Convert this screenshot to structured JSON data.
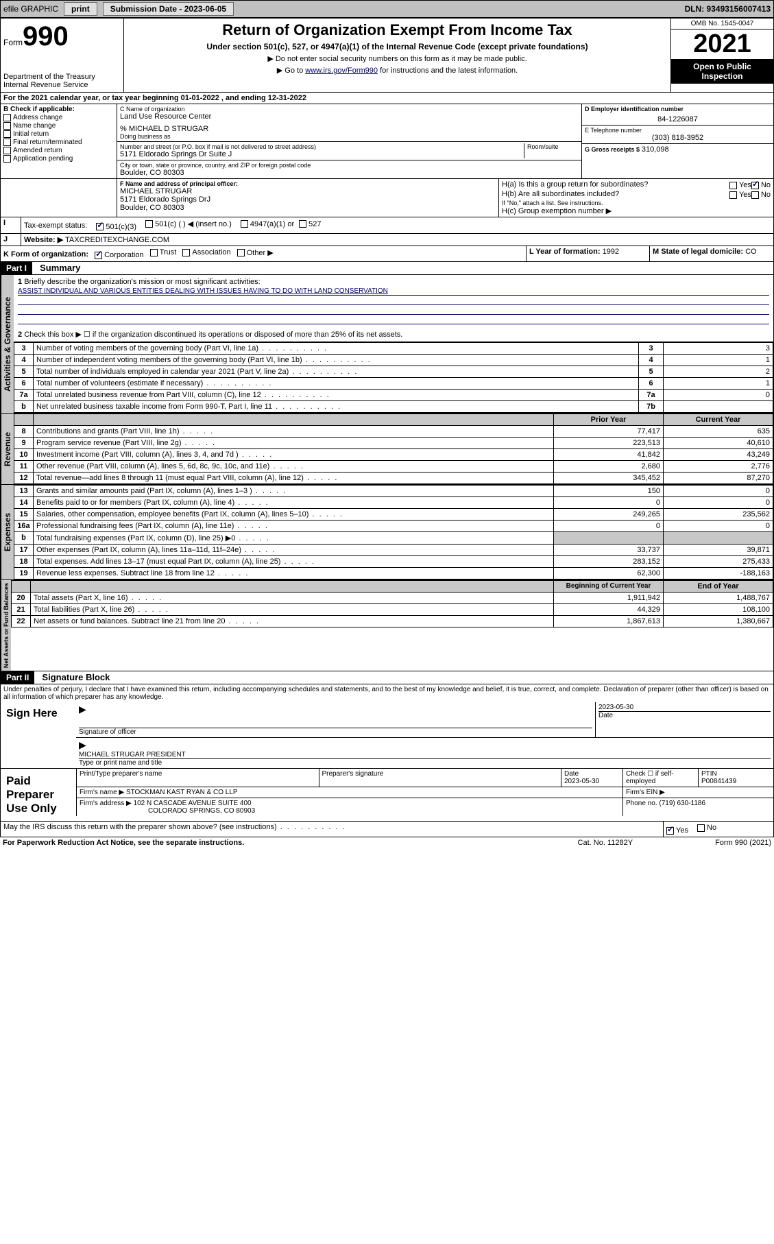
{
  "topbar": {
    "efile": "efile GRAPHIC",
    "print": "print",
    "sub_label": "Submission Date - 2023-06-05",
    "dln": "DLN: 93493156007413"
  },
  "header": {
    "form_word": "Form",
    "form_num": "990",
    "dept": "Department of the Treasury",
    "irs": "Internal Revenue Service",
    "title": "Return of Organization Exempt From Income Tax",
    "sub": "Under section 501(c), 527, or 4947(a)(1) of the Internal Revenue Code (except private foundations)",
    "note1": "▶ Do not enter social security numbers on this form as it may be made public.",
    "note2_pre": "▶ Go to ",
    "note2_link": "www.irs.gov/Form990",
    "note2_post": " for instructions and the latest information.",
    "omb": "OMB No. 1545-0047",
    "year": "2021",
    "open": "Open to Public Inspection"
  },
  "line_a": "For the 2021 calendar year, or tax year beginning 01-01-2022   , and ending 12-31-2022",
  "box_b": {
    "title": "B Check if applicable:",
    "items": [
      "Address change",
      "Name change",
      "Initial return",
      "Final return/terminated",
      "Amended return",
      "Application pending"
    ]
  },
  "box_c": {
    "name_lbl": "C Name of organization",
    "name": "Land Use Resource Center",
    "care_of": "% MICHAEL D STRUGAR",
    "dba_lbl": "Doing business as",
    "street_lbl": "Number and street (or P.O. box if mail is not delivered to street address)",
    "street": "5171 Eldorado Springs Dr Suite J",
    "room_lbl": "Room/suite",
    "city_lbl": "City or town, state or province, country, and ZIP or foreign postal code",
    "city": "Boulder, CO  80303"
  },
  "box_d": {
    "lbl": "D Employer identification number",
    "val": "84-1226087"
  },
  "box_e": {
    "lbl": "E Telephone number",
    "val": "(303) 818-3952"
  },
  "box_g": {
    "lbl": "G Gross receipts $",
    "val": "310,098"
  },
  "box_f": {
    "lbl": "F Name and address of principal officer:",
    "name": "MICHAEL STRUGAR",
    "addr1": "5171 Eldorado Springs DrJ",
    "addr2": "Boulder, CO  80303"
  },
  "box_h": {
    "a": "H(a)  Is this a group return for subordinates?",
    "b": "H(b)  Are all subordinates included?",
    "b_note": "If \"No,\" attach a list. See instructions.",
    "c": "H(c)  Group exemption number ▶",
    "yes": "Yes",
    "no": "No"
  },
  "box_i": {
    "lbl": "Tax-exempt status:",
    "o1": "501(c)(3)",
    "o2": "501(c) (  ) ◀ (insert no.)",
    "o3": "4947(a)(1) or",
    "o4": "527"
  },
  "box_j": {
    "lbl": "Website: ▶",
    "val": "TAXCREDITEXCHANGE.COM"
  },
  "box_k": {
    "lbl": "K Form of organization:",
    "o1": "Corporation",
    "o2": "Trust",
    "o3": "Association",
    "o4": "Other ▶"
  },
  "box_l": {
    "lbl": "L Year of formation:",
    "val": "1992"
  },
  "box_m": {
    "lbl": "M State of legal domicile:",
    "val": "CO"
  },
  "part1": {
    "hdr": "Part I",
    "title": "Summary",
    "l1_lbl": "Briefly describe the organization's mission or most significant activities:",
    "l1_val": "ASSIST INDIVIDUAL AND VARIOUS ENTITIES DEALING WITH ISSUES HAVING TO DO WITH LAND CONSERVATION",
    "l2": "Check this box ▶ ☐  if the organization discontinued its operations or disposed of more than 25% of its net assets.",
    "rows_gov": [
      {
        "n": "3",
        "d": "Number of voting members of the governing body (Part VI, line 1a)",
        "b": "3",
        "v": "3"
      },
      {
        "n": "4",
        "d": "Number of independent voting members of the governing body (Part VI, line 1b)",
        "b": "4",
        "v": "1"
      },
      {
        "n": "5",
        "d": "Total number of individuals employed in calendar year 2021 (Part V, line 2a)",
        "b": "5",
        "v": "2"
      },
      {
        "n": "6",
        "d": "Total number of volunteers (estimate if necessary)",
        "b": "6",
        "v": "1"
      },
      {
        "n": "7a",
        "d": "Total unrelated business revenue from Part VIII, column (C), line 12",
        "b": "7a",
        "v": "0"
      },
      {
        "n": "b",
        "d": "Net unrelated business taxable income from Form 990-T, Part I, line 11",
        "b": "7b",
        "v": ""
      }
    ],
    "col_prior": "Prior Year",
    "col_curr": "Current Year",
    "rows_rev": [
      {
        "n": "8",
        "d": "Contributions and grants (Part VIII, line 1h)",
        "p": "77,417",
        "c": "635"
      },
      {
        "n": "9",
        "d": "Program service revenue (Part VIII, line 2g)",
        "p": "223,513",
        "c": "40,610"
      },
      {
        "n": "10",
        "d": "Investment income (Part VIII, column (A), lines 3, 4, and 7d )",
        "p": "41,842",
        "c": "43,249"
      },
      {
        "n": "11",
        "d": "Other revenue (Part VIII, column (A), lines 5, 6d, 8c, 9c, 10c, and 11e)",
        "p": "2,680",
        "c": "2,776"
      },
      {
        "n": "12",
        "d": "Total revenue—add lines 8 through 11 (must equal Part VIII, column (A), line 12)",
        "p": "345,452",
        "c": "87,270"
      }
    ],
    "rows_exp": [
      {
        "n": "13",
        "d": "Grants and similar amounts paid (Part IX, column (A), lines 1–3 )",
        "p": "150",
        "c": "0"
      },
      {
        "n": "14",
        "d": "Benefits paid to or for members (Part IX, column (A), line 4)",
        "p": "0",
        "c": "0"
      },
      {
        "n": "15",
        "d": "Salaries, other compensation, employee benefits (Part IX, column (A), lines 5–10)",
        "p": "249,265",
        "c": "235,562"
      },
      {
        "n": "16a",
        "d": "Professional fundraising fees (Part IX, column (A), line 11e)",
        "p": "0",
        "c": "0"
      },
      {
        "n": "b",
        "d": "Total fundraising expenses (Part IX, column (D), line 25) ▶0",
        "p": "",
        "c": "",
        "shade": true
      },
      {
        "n": "17",
        "d": "Other expenses (Part IX, column (A), lines 11a–11d, 11f–24e)",
        "p": "33,737",
        "c": "39,871"
      },
      {
        "n": "18",
        "d": "Total expenses. Add lines 13–17 (must equal Part IX, column (A), line 25)",
        "p": "283,152",
        "c": "275,433"
      },
      {
        "n": "19",
        "d": "Revenue less expenses. Subtract line 18 from line 12",
        "p": "62,300",
        "c": "-188,163"
      }
    ],
    "col_beg": "Beginning of Current Year",
    "col_end": "End of Year",
    "rows_net": [
      {
        "n": "20",
        "d": "Total assets (Part X, line 16)",
        "p": "1,911,942",
        "c": "1,488,767"
      },
      {
        "n": "21",
        "d": "Total liabilities (Part X, line 26)",
        "p": "44,329",
        "c": "108,100"
      },
      {
        "n": "22",
        "d": "Net assets or fund balances. Subtract line 21 from line 20",
        "p": "1,867,613",
        "c": "1,380,667"
      }
    ],
    "tab_gov": "Activities & Governance",
    "tab_rev": "Revenue",
    "tab_exp": "Expenses",
    "tab_net": "Net Assets or Fund Balances"
  },
  "part2": {
    "hdr": "Part II",
    "title": "Signature Block",
    "decl": "Under penalties of perjury, I declare that I have examined this return, including accompanying schedules and statements, and to the best of my knowledge and belief, it is true, correct, and complete. Declaration of preparer (other than officer) is based on all information of which preparer has any knowledge."
  },
  "sign": {
    "here": "Sign Here",
    "sig_lbl": "Signature of officer",
    "date": "2023-05-30",
    "date_lbl": "Date",
    "name": "MICHAEL STRUGAR PRESIDENT",
    "name_lbl": "Type or print name and title"
  },
  "paid": {
    "hdr": "Paid Preparer Use Only",
    "c1": "Print/Type preparer's name",
    "c2": "Preparer's signature",
    "c3": "Date",
    "c3v": "2023-05-30",
    "c4": "Check ☐ if self-employed",
    "c5": "PTIN",
    "c5v": "P00841439",
    "firm_lbl": "Firm's name    ▶",
    "firm": "STOCKMAN KAST RYAN & CO LLP",
    "ein_lbl": "Firm's EIN ▶",
    "addr_lbl": "Firm's address ▶",
    "addr1": "102 N CASCADE AVENUE SUITE 400",
    "addr2": "COLORADO SPRINGS, CO  80903",
    "phone_lbl": "Phone no.",
    "phone": "(719) 630-1186"
  },
  "discuss": {
    "q": "May the IRS discuss this return with the preparer shown above? (see instructions)",
    "yes": "Yes",
    "no": "No"
  },
  "footer": {
    "l": "For Paperwork Reduction Act Notice, see the separate instructions.",
    "m": "Cat. No. 11282Y",
    "r": "Form 990 (2021)"
  }
}
